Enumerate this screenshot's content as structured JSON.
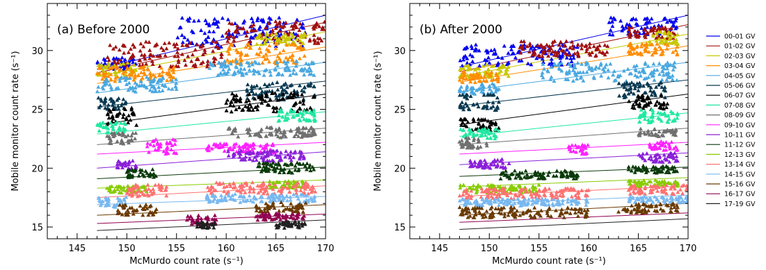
{
  "chart_data": [
    {
      "type": "scatter",
      "title": "(a) Before 2000",
      "xlabel": "McMurdo count rate (s⁻¹)",
      "ylabel": "Mobile monitor count rate (s⁻¹)",
      "xlim": [
        142,
        170
      ],
      "ylim": [
        14,
        34
      ],
      "xticks": [
        "145",
        "150",
        "155",
        "160",
        "165",
        "170"
      ],
      "yticks": [
        "15",
        "20",
        "25",
        "30"
      ],
      "marker": "triangle",
      "grid": false,
      "series": [
        {
          "name": "00-01 GV",
          "color": "#0000ee",
          "fit": [
            [
              147,
              28.4
            ],
            [
              170,
              33.0
            ]
          ],
          "clusters": [
            [
              147,
              151,
              28.4,
              29.4
            ],
            [
              155,
              168,
              30.3,
              32.8
            ]
          ]
        },
        {
          "name": "01-02 GV",
          "color": "#a01010",
          "fit": [
            [
              147,
              28.1
            ],
            [
              170,
              32.4
            ]
          ],
          "clusters": [
            [
              148,
              160,
              28.6,
              30.8
            ],
            [
              160,
              170,
              30.6,
              32.5
            ]
          ]
        },
        {
          "name": "02-03 GV",
          "color": "#c8c800",
          "fit": [
            [
              147,
              27.8
            ],
            [
              170,
              31.6
            ]
          ],
          "clusters": [
            [
              147,
              151,
              27.9,
              29.0
            ],
            [
              163,
              168,
              30.5,
              31.5
            ]
          ]
        },
        {
          "name": "03-04 GV",
          "color": "#ff8c00",
          "fit": [
            [
              147,
              27.2
            ],
            [
              170,
              30.3
            ]
          ],
          "clusters": [
            [
              147,
              155,
              27.4,
              28.7
            ],
            [
              160,
              168,
              28.9,
              30.6
            ]
          ]
        },
        {
          "name": "04-05 GV",
          "color": "#4aa8e0",
          "fit": [
            [
              147,
              26.4
            ],
            [
              170,
              29.0
            ]
          ],
          "clusters": [
            [
              147,
              155,
              26.5,
              27.8
            ],
            [
              158,
              169,
              27.9,
              29.1
            ]
          ]
        },
        {
          "name": "05-06 GV",
          "color": "#083850",
          "fit": [
            [
              147,
              25.2
            ],
            [
              170,
              27.4
            ]
          ],
          "clusters": [
            [
              147,
              150,
              25.0,
              26.0
            ],
            [
              162,
              169,
              25.8,
              27.3
            ]
          ]
        },
        {
          "name": "06-07 GV",
          "color": "#000000",
          "fit": [
            [
              147,
              23.7
            ],
            [
              170,
              26.3
            ]
          ],
          "clusters": [
            [
              148,
              151,
              23.5,
              25.2
            ],
            [
              160,
              169,
              24.8,
              26.4
            ]
          ]
        },
        {
          "name": "07-08 GV",
          "color": "#20e8a0",
          "fit": [
            [
              147,
              22.9
            ],
            [
              170,
              24.8
            ]
          ],
          "clusters": [
            [
              147,
              150,
              23.0,
              23.9
            ],
            [
              165,
              169,
              24.0,
              25.0
            ]
          ]
        },
        {
          "name": "08-09 GV",
          "color": "#707070",
          "fit": [
            [
              147,
              22.0
            ],
            [
              170,
              23.4
            ]
          ],
          "clusters": [
            [
              148,
              151,
              22.0,
              23.0
            ],
            [
              160,
              169,
              22.6,
              23.5
            ]
          ]
        },
        {
          "name": "09-10 GV",
          "color": "#ff20ff",
          "fit": [
            [
              147,
              21.2
            ],
            [
              170,
              22.2
            ]
          ],
          "clusters": [
            [
              152,
              155,
              21.2,
              22.5
            ],
            [
              158,
              165,
              21.3,
              22.1
            ]
          ]
        },
        {
          "name": "10-11 GV",
          "color": "#8a20d8",
          "fit": [
            [
              147,
              20.0
            ],
            [
              170,
              21.4
            ]
          ],
          "clusters": [
            [
              149,
              151,
              20.0,
              20.8
            ],
            [
              160,
              168,
              20.6,
              21.5
            ]
          ]
        },
        {
          "name": "11-12 GV",
          "color": "#0a3a0a",
          "fit": [
            [
              147,
              19.1
            ],
            [
              170,
              20.1
            ]
          ],
          "clusters": [
            [
              150,
              153,
              19.2,
              19.9
            ],
            [
              163,
              169,
              19.6,
              20.5
            ]
          ]
        },
        {
          "name": "12-13 GV",
          "color": "#88cc00",
          "fit": [
            [
              147,
              18.3
            ],
            [
              170,
              19.0
            ]
          ],
          "clusters": [
            [
              148,
              152,
              17.9,
              18.5
            ],
            [
              164,
              168,
              18.3,
              18.9
            ]
          ]
        },
        {
          "name": "13-14 GV",
          "color": "#ff7070",
          "fit": [
            [
              147,
              17.5
            ],
            [
              170,
              18.5
            ]
          ],
          "clusters": [
            [
              150,
              154,
              17.6,
              18.6
            ],
            [
              158,
              169,
              17.8,
              18.8
            ]
          ]
        },
        {
          "name": "14-15 GV",
          "color": "#78b8f0",
          "fit": [
            [
              147,
              16.9
            ],
            [
              170,
              17.6
            ]
          ],
          "clusters": [
            [
              147,
              150,
              16.7,
              17.6
            ],
            [
              158,
              169,
              17.1,
              17.8
            ]
          ]
        },
        {
          "name": "15-16 GV",
          "color": "#6a3a00",
          "fit": [
            [
              147,
              16.0
            ],
            [
              170,
              16.9
            ]
          ],
          "clusters": [
            [
              149,
              153,
              16.0,
              16.9
            ],
            [
              163,
              168,
              16.2,
              17.1
            ]
          ]
        },
        {
          "name": "16-17 GV",
          "color": "#900050",
          "fit": [
            [
              147,
              15.3
            ],
            [
              170,
              16.1
            ]
          ],
          "clusters": [
            [
              156,
              159,
              15.2,
              16.0
            ],
            [
              163,
              168,
              15.6,
              16.2
            ]
          ]
        },
        {
          "name": "17-19 GV",
          "color": "#202020",
          "fit": [
            [
              147,
              14.7
            ],
            [
              170,
              15.6
            ]
          ],
          "clusters": [
            [
              157,
              159,
              14.9,
              15.4
            ],
            [
              165,
              168,
              14.9,
              15.5
            ]
          ]
        }
      ]
    },
    {
      "type": "scatter",
      "title": "(b) After 2000",
      "xlabel": "McMurdo count rate (s⁻¹)",
      "ylabel": "Mobile monitor count rate (s⁻¹)",
      "xlim": [
        142,
        170
      ],
      "ylim": [
        14,
        34
      ],
      "xticks": [
        "145",
        "150",
        "155",
        "160",
        "165",
        "170"
      ],
      "yticks": [
        "15",
        "20",
        "25",
        "30"
      ],
      "marker": "triangle",
      "grid": false,
      "series": [
        {
          "name": "00-01 GV",
          "color": "#0000ee",
          "fit": [
            [
              147,
              28.6
            ],
            [
              170,
              33.0
            ]
          ],
          "clusters": [
            [
              147,
              159,
              28.7,
              30.5
            ],
            [
              162,
              169,
              31.3,
              32.8
            ]
          ]
        },
        {
          "name": "01-02 GV",
          "color": "#a01010",
          "fit": [
            [
              147,
              28.2
            ],
            [
              170,
              32.2
            ]
          ],
          "clusters": [
            [
              153,
              162,
              29.5,
              30.8
            ],
            [
              164,
              169,
              31.0,
              32.0
            ]
          ]
        },
        {
          "name": "02-03 GV",
          "color": "#c8c800",
          "fit": [
            [
              147,
              27.8
            ],
            [
              170,
              31.4
            ]
          ],
          "clusters": [
            [
              147,
              152,
              27.7,
              28.8
            ],
            [
              166,
              169,
              30.5,
              31.6
            ]
          ]
        },
        {
          "name": "03-04 GV",
          "color": "#ff8c00",
          "fit": [
            [
              147,
              27.3
            ],
            [
              170,
              30.4
            ]
          ],
          "clusters": [
            [
              147,
              151,
              27.3,
              28.2
            ],
            [
              164,
              169,
              29.6,
              30.6
            ]
          ]
        },
        {
          "name": "04-05 GV",
          "color": "#4aa8e0",
          "fit": [
            [
              147,
              26.5
            ],
            [
              170,
              29.0
            ]
          ],
          "clusters": [
            [
              147,
              151,
              26.3,
              27.2
            ],
            [
              155,
              169,
              27.4,
              29.0
            ]
          ]
        },
        {
          "name": "05-06 GV",
          "color": "#083850",
          "fit": [
            [
              147,
              25.3
            ],
            [
              170,
              27.5
            ]
          ],
          "clusters": [
            [
              147,
              151,
              24.9,
              26.3
            ],
            [
              163,
              168,
              26.0,
              27.3
            ]
          ]
        },
        {
          "name": "06-07 GV",
          "color": "#000000",
          "fit": [
            [
              147,
              23.7
            ],
            [
              170,
              26.3
            ]
          ],
          "clusters": [
            [
              147,
              151,
              23.2,
              24.2
            ],
            [
              164,
              168,
              25.0,
              26.2
            ]
          ]
        },
        {
          "name": "07-08 GV",
          "color": "#20e8a0",
          "fit": [
            [
              147,
              22.7
            ],
            [
              170,
              24.7
            ]
          ],
          "clusters": [
            [
              147,
              151,
              22.5,
              23.4
            ],
            [
              165,
              169,
              23.8,
              25.0
            ]
          ]
        },
        {
          "name": "08-09 GV",
          "color": "#707070",
          "fit": [
            [
              147,
              22.0
            ],
            [
              170,
              23.4
            ]
          ],
          "clusters": [
            [
              147,
              150,
              21.7,
              22.6
            ],
            [
              165,
              169,
              22.7,
              23.4
            ]
          ]
        },
        {
          "name": "09-10 GV",
          "color": "#ff20ff",
          "fit": [
            [
              147,
              21.2
            ],
            [
              170,
              22.2
            ]
          ],
          "clusters": [
            [
              158,
              160,
              21.2,
              22.0
            ],
            [
              166,
              169,
              21.5,
              22.3
            ]
          ]
        },
        {
          "name": "10-11 GV",
          "color": "#8a20d8",
          "fit": [
            [
              147,
              20.3
            ],
            [
              170,
              21.3
            ]
          ],
          "clusters": [
            [
              148,
              152,
              20.0,
              20.8
            ],
            [
              165,
              169,
              20.5,
              21.3
            ]
          ]
        },
        {
          "name": "11-12 GV",
          "color": "#0a3a0a",
          "fit": [
            [
              147,
              19.3
            ],
            [
              170,
              20.1
            ]
          ],
          "clusters": [
            [
              151,
              159,
              19.1,
              19.8
            ],
            [
              164,
              169,
              19.6,
              20.2
            ]
          ]
        },
        {
          "name": "12-13 GV",
          "color": "#88cc00",
          "fit": [
            [
              147,
              18.4
            ],
            [
              170,
              19.2
            ]
          ],
          "clusters": [
            [
              147,
              155,
              17.9,
              18.6
            ],
            [
              164,
              169,
              18.4,
              19.0
            ]
          ]
        },
        {
          "name": "13-14 GV",
          "color": "#ff7070",
          "fit": [
            [
              147,
              17.6
            ],
            [
              170,
              18.5
            ]
          ],
          "clusters": [
            [
              147,
              160,
              17.4,
              18.3
            ],
            [
              164,
              170,
              17.8,
              18.6
            ]
          ]
        },
        {
          "name": "14-15 GV",
          "color": "#78b8f0",
          "fit": [
            [
              147,
              16.9
            ],
            [
              170,
              17.7
            ]
          ],
          "clusters": [
            [
              147,
              160,
              16.8,
              17.4
            ],
            [
              164,
              170,
              17.1,
              17.6
            ]
          ]
        },
        {
          "name": "15-16 GV",
          "color": "#6a3a00",
          "fit": [
            [
              147,
              16.0
            ],
            [
              170,
              17.0
            ]
          ],
          "clusters": [
            [
              147,
              160,
              15.8,
              16.7
            ],
            [
              163,
              169,
              16.2,
              17.0
            ]
          ]
        },
        {
          "name": "16-17 GV",
          "color": "#900050",
          "fit": [
            [
              147,
              15.4
            ],
            [
              170,
              16.2
            ]
          ],
          "clusters": []
        },
        {
          "name": "17-19 GV",
          "color": "#202020",
          "fit": [
            [
              147,
              14.8
            ],
            [
              170,
              15.7
            ]
          ],
          "clusters": []
        }
      ]
    }
  ]
}
